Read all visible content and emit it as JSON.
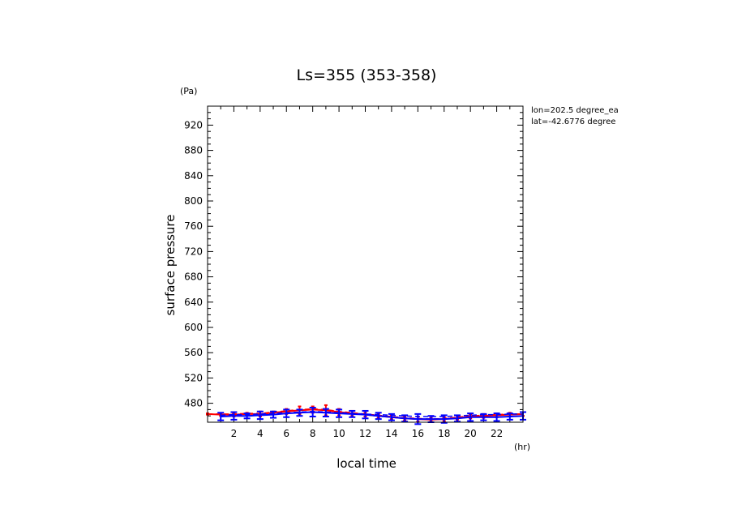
{
  "chart_data": {
    "type": "line",
    "title": "Ls=355 (353-358)",
    "xlabel": "local time",
    "ylabel": "surface pressure",
    "x_unit": "(hr)",
    "y_unit": "(Pa)",
    "xlim": [
      0,
      24
    ],
    "ylim": [
      450,
      950
    ],
    "x_ticks": [
      2,
      4,
      6,
      8,
      10,
      12,
      14,
      16,
      18,
      20,
      22
    ],
    "y_ticks": [
      480,
      520,
      560,
      600,
      640,
      680,
      720,
      760,
      800,
      840,
      880,
      920
    ],
    "annotations": [
      "lon=202.5 degree_ea",
      "lat=-42.6776 degree"
    ],
    "colors": {
      "series_red": "#ff0000",
      "series_blue": "#0000ff",
      "axes": "#000000"
    },
    "series": [
      {
        "style": "solid",
        "color": "#ff0000",
        "x": [
          0,
          1,
          2,
          3,
          4,
          5,
          6,
          7,
          8,
          9,
          10,
          11,
          12,
          13,
          14,
          15,
          16,
          17,
          18,
          19,
          20,
          21,
          22,
          23,
          24
        ],
        "y": [
          463,
          462,
          462,
          463,
          463,
          465,
          467,
          469,
          470,
          469,
          466,
          464,
          462,
          460,
          458,
          456,
          455,
          454,
          455,
          457,
          459,
          460,
          461,
          462,
          463
        ],
        "error": [
          1,
          2,
          3,
          2,
          4,
          2,
          4,
          6,
          5,
          8,
          5,
          4,
          3,
          3,
          3,
          3,
          4,
          3,
          3,
          3,
          3,
          3,
          3,
          3,
          3
        ]
      },
      {
        "style": "dashed",
        "color": "#ff0000",
        "x": [
          0,
          1,
          2,
          3,
          4,
          5,
          6,
          7,
          8,
          9,
          10,
          11,
          12,
          13,
          14,
          15,
          16,
          17,
          18,
          19,
          20,
          21,
          22,
          23,
          24
        ],
        "y": [
          463,
          463,
          463,
          464,
          464,
          466,
          468,
          470,
          471,
          470,
          467,
          465,
          463,
          461,
          459,
          457,
          456,
          455,
          456,
          458,
          460,
          461,
          462,
          463,
          463
        ]
      },
      {
        "style": "solid",
        "color": "#0000ff",
        "x": [
          1,
          2,
          3,
          4,
          5,
          6,
          7,
          8,
          9,
          10,
          11,
          12,
          13,
          14,
          15,
          16,
          17,
          18,
          19,
          20,
          21,
          22,
          23,
          24
        ],
        "y": [
          459,
          460,
          460,
          461,
          462,
          464,
          465,
          466,
          465,
          464,
          463,
          462,
          460,
          458,
          456,
          455,
          455,
          455,
          456,
          458,
          458,
          458,
          459,
          460
        ],
        "error": [
          6,
          6,
          4,
          6,
          5,
          6,
          5,
          7,
          6,
          6,
          5,
          6,
          5,
          5,
          5,
          8,
          5,
          6,
          5,
          6,
          5,
          6,
          5,
          6
        ]
      },
      {
        "style": "dashed",
        "color": "#0000ff",
        "x": [
          1,
          2,
          3,
          4,
          5,
          6,
          7,
          8,
          9,
          10,
          11,
          12,
          13,
          14,
          15,
          16,
          17,
          18,
          19,
          20,
          21,
          22,
          23,
          24
        ],
        "y": [
          461,
          462,
          462,
          463,
          464,
          465,
          466,
          467,
          466,
          465,
          464,
          463,
          462,
          461,
          460,
          459,
          459,
          459,
          460,
          461,
          462,
          462,
          463,
          463
        ]
      }
    ]
  }
}
